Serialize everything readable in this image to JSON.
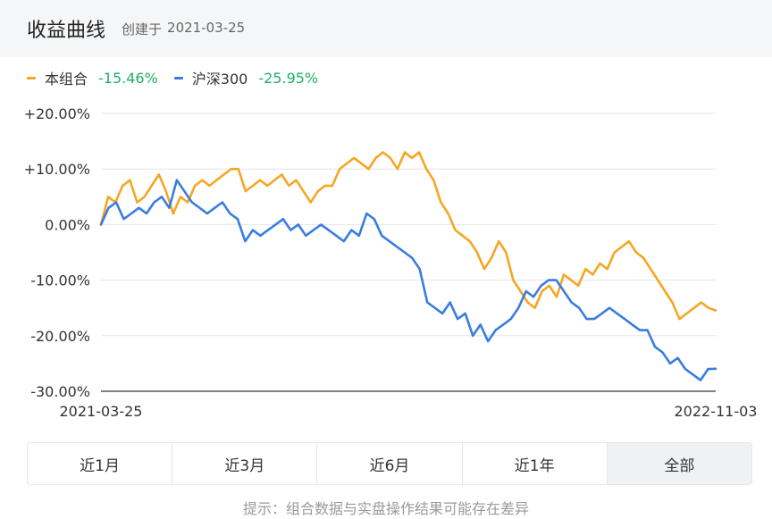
{
  "header": {
    "title": "收益曲线",
    "created_prefix": "创建于",
    "created_date": "2021-03-25"
  },
  "legend": [
    {
      "name": "本组合",
      "return": "-15.46%",
      "color": "#f5a623",
      "return_color": "#1fae5f"
    },
    {
      "name": "沪深300",
      "return": "-25.95%",
      "color": "#3a7de0",
      "return_color": "#1fae5f"
    }
  ],
  "tabs": [
    {
      "label": "近1月",
      "active": false
    },
    {
      "label": "近3月",
      "active": false
    },
    {
      "label": "近6月",
      "active": false
    },
    {
      "label": "近1年",
      "active": false
    },
    {
      "label": "全部",
      "active": true
    }
  ],
  "note": "提示：组合数据与实盘操作结果可能存在差异",
  "chart_data": {
    "type": "line",
    "title": "",
    "x_start_label": "2021-03-25",
    "x_end_label": "2022-11-03",
    "y_tick_labels": [
      "+20.00%",
      "+10.00%",
      "0.00%",
      "-10.00%",
      "-20.00%",
      "-30.00%"
    ],
    "y_ticks": [
      20,
      10,
      0,
      -10,
      -20,
      -30
    ],
    "ylim": [
      -30,
      20
    ],
    "grid": true,
    "series": [
      {
        "name": "本组合",
        "color": "#f5a623",
        "values": [
          0,
          5,
          4,
          7,
          8,
          4,
          5,
          7,
          9,
          6,
          2,
          5,
          4,
          7,
          8,
          7,
          8,
          9,
          10,
          10,
          6,
          7,
          8,
          7,
          8,
          9,
          7,
          8,
          6,
          4,
          6,
          7,
          7,
          10,
          11,
          12,
          11,
          10,
          12,
          13,
          12,
          10,
          13,
          12,
          13,
          10,
          8,
          4,
          2,
          -1,
          -2,
          -3,
          -5,
          -8,
          -6,
          -3,
          -5,
          -10,
          -12,
          -14,
          -15,
          -12,
          -11,
          -13,
          -9,
          -10,
          -11,
          -8,
          -9,
          -7,
          -8,
          -5,
          -4,
          -3,
          -5,
          -6,
          -8,
          -10,
          -12,
          -14,
          -17,
          -16,
          -15,
          -14,
          -15,
          -15.46
        ]
      },
      {
        "name": "沪深300",
        "color": "#3a7de0",
        "values": [
          0,
          3,
          4,
          1,
          2,
          3,
          2,
          4,
          5,
          3,
          8,
          6,
          4,
          3,
          2,
          3,
          4,
          2,
          1,
          -3,
          -1,
          -2,
          -1,
          0,
          1,
          -1,
          0,
          -2,
          -1,
          0,
          -1,
          -2,
          -3,
          -1,
          -2,
          2,
          1,
          -2,
          -3,
          -4,
          -5,
          -6,
          -8,
          -14,
          -15,
          -16,
          -14,
          -17,
          -16,
          -20,
          -18,
          -21,
          -19,
          -18,
          -17,
          -15,
          -12,
          -13,
          -11,
          -10,
          -10,
          -12,
          -14,
          -15,
          -17,
          -17,
          -16,
          -15,
          -16,
          -17,
          -18,
          -19,
          -19,
          -22,
          -23,
          -25,
          -24,
          -26,
          -27,
          -28,
          -26,
          -25.95
        ]
      }
    ]
  }
}
